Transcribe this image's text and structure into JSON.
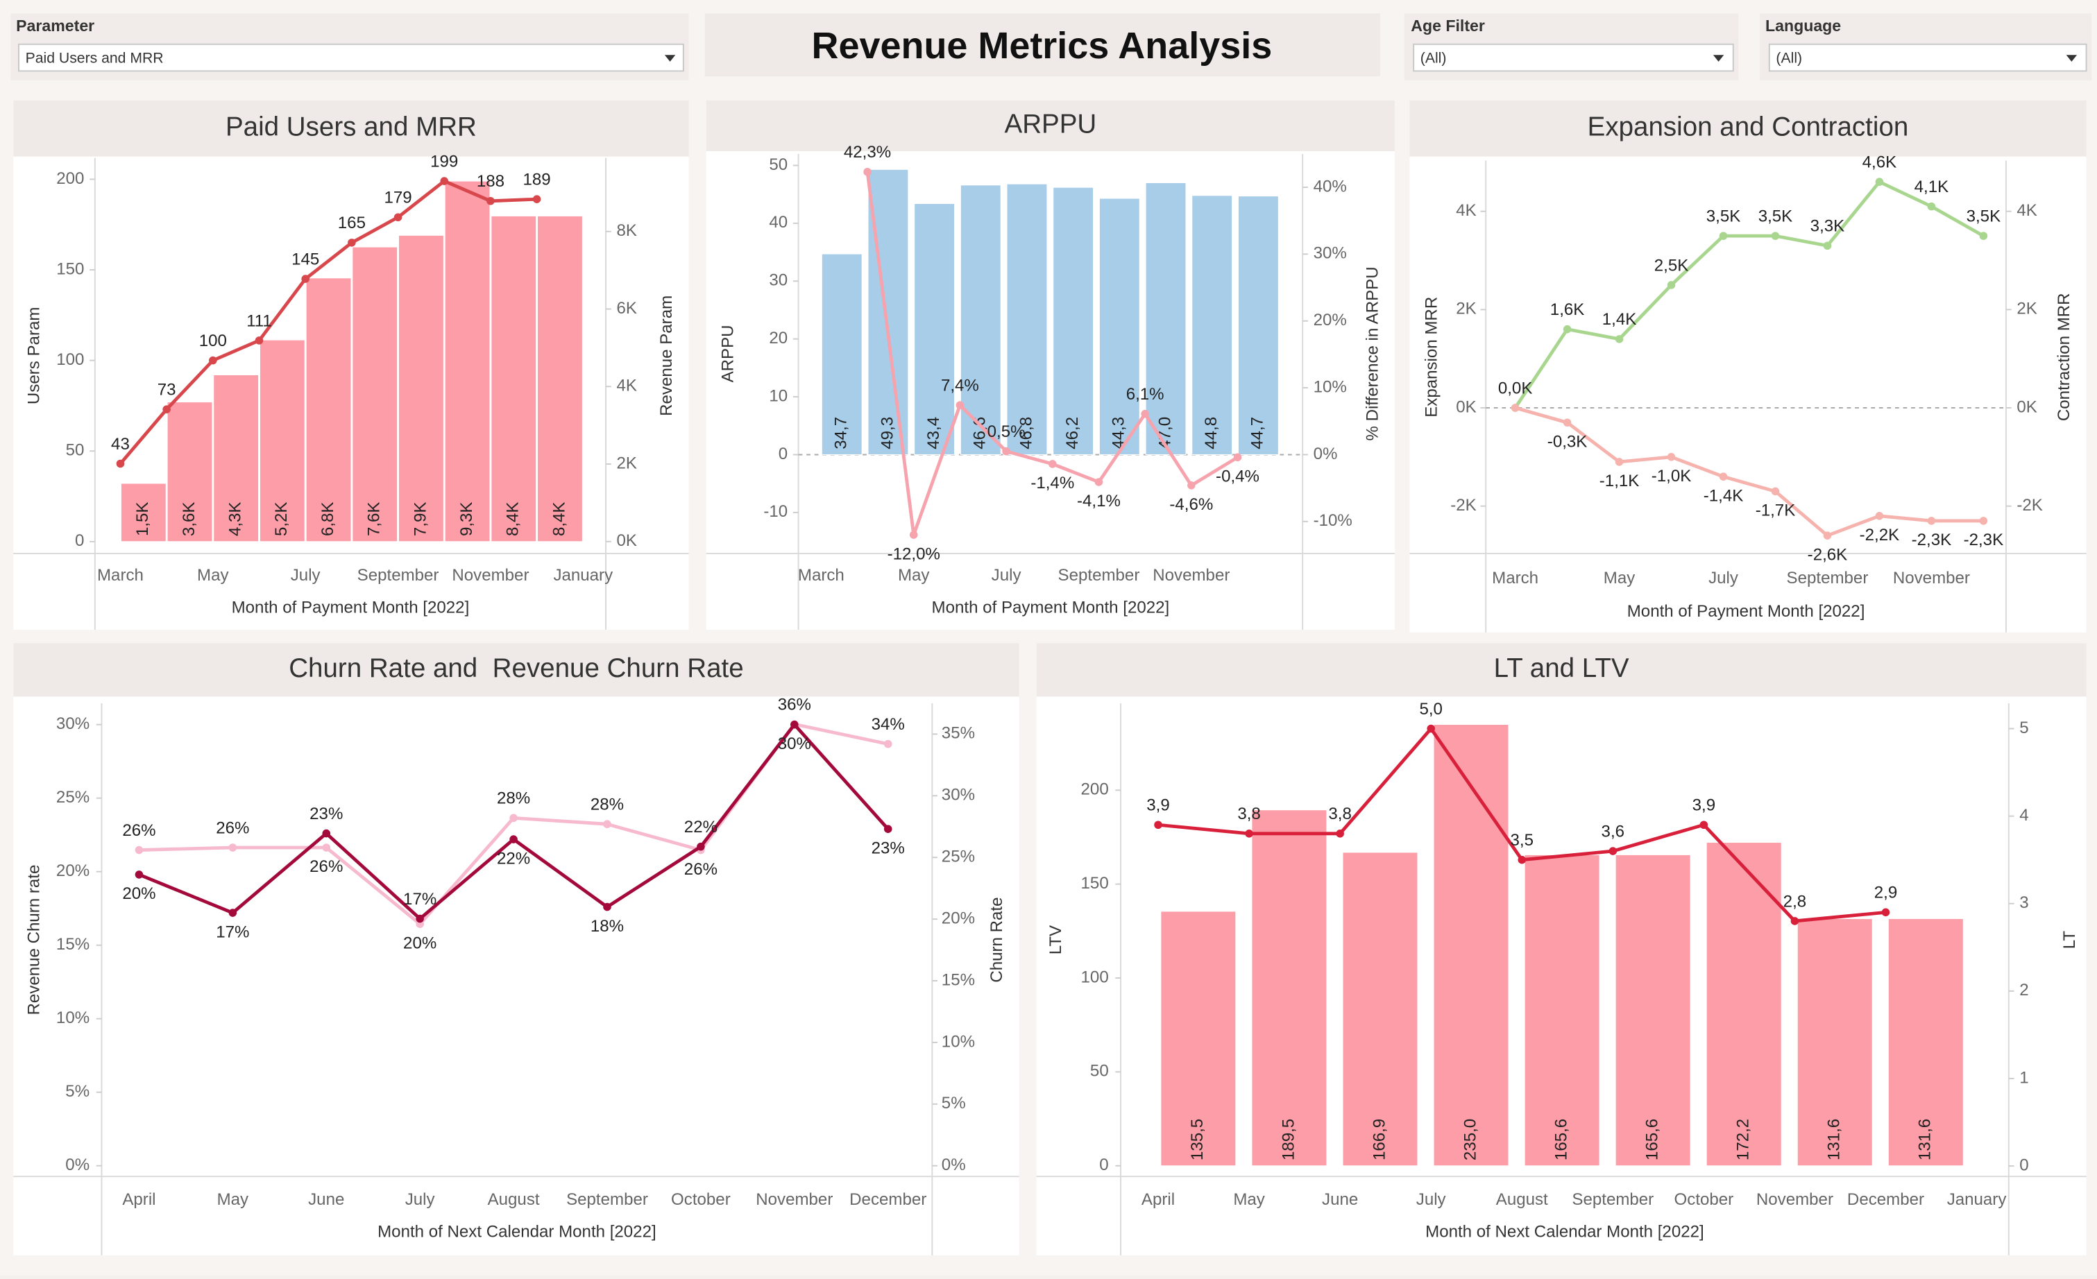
{
  "header": {
    "title": "Revenue Metrics Analysis"
  },
  "filters": [
    {
      "label": "Parameter",
      "value": "Paid Users and MRR"
    },
    {
      "label": "Age Filter",
      "value": "(All)"
    },
    {
      "label": "Language",
      "value": "(All)"
    }
  ],
  "chart_data": [
    {
      "type": "combo",
      "title": "Paid Users and MRR",
      "categories": [
        "March",
        null,
        "May",
        null,
        "July",
        null,
        "September",
        null,
        "November",
        null,
        "January"
      ],
      "xlabel": "Month of Payment Month [2022]",
      "ylabel": "Users Param",
      "y2label": "Revenue Param",
      "series": [
        {
          "mark": "bar",
          "axis": "y2",
          "color": "#fc9da7",
          "values": [
            1500,
            3600,
            4300,
            5200,
            6800,
            7600,
            7900,
            9300,
            8400,
            8400,
            null
          ],
          "value_labels": [
            "1,5K",
            "3,6K",
            "4,3K",
            "5,2K",
            "6,8K",
            "7,6K",
            "7,9K",
            "9,3K",
            "8,4K",
            "8,4K",
            null
          ]
        },
        {
          "mark": "line",
          "axis": "y",
          "color": "#d8474b",
          "values": [
            43,
            73,
            100,
            111,
            145,
            165,
            179,
            199,
            188,
            189,
            null
          ]
        }
      ],
      "ylim": [
        -6.6,
        211.8
      ],
      "yticks": [
        0,
        50,
        100,
        150,
        200
      ],
      "y2lim": [
        -310,
        9900
      ],
      "y2ticks": [
        {
          "value": 0,
          "label": "0K"
        },
        {
          "value": 2000,
          "label": "2K"
        },
        {
          "value": 4000,
          "label": "4K"
        },
        {
          "value": 6000,
          "label": "6K"
        },
        {
          "value": 8000,
          "label": "8K"
        }
      ]
    },
    {
      "type": "combo",
      "title": "ARPPU",
      "categories": [
        "March",
        null,
        "May",
        null,
        "July",
        null,
        "September",
        null,
        "November",
        null
      ],
      "xlabel": "Month of Payment Month [2022]",
      "ylabel": "ARPPU",
      "y2label": "% Difference in ARPPU",
      "zero_line": true,
      "series": [
        {
          "mark": "bar",
          "axis": "y",
          "color": "#a7cde9",
          "values": [
            34.7,
            49.3,
            43.4,
            46.6,
            46.8,
            46.2,
            44.3,
            47.0,
            44.8,
            44.7
          ],
          "value_labels": [
            "34,7",
            "49,3",
            "43,4",
            "46,6",
            "46,8",
            "46,2",
            "44,3",
            "47,0",
            "44,8",
            "44,7"
          ]
        },
        {
          "mark": "line",
          "axis": "y2",
          "color": "#f6a3ad",
          "values": [
            null,
            42.3,
            -12.0,
            7.4,
            0.5,
            -1.4,
            -4.1,
            6.1,
            -4.6,
            -0.4
          ],
          "value_labels": [
            null,
            "42,3%",
            "-12,0%",
            "7,4%",
            "0,5%",
            "-1,4%",
            "-4,1%",
            "6,1%",
            "-4,6%",
            "-0,4%"
          ]
        }
      ],
      "ylim": [
        -17.1,
        52.0
      ],
      "yticks": [
        -10,
        0,
        10,
        20,
        30,
        40,
        50
      ],
      "y2lim": [
        -14.8,
        45
      ],
      "y2ticks": [
        {
          "value": -10,
          "label": "-10%"
        },
        {
          "value": 0,
          "label": "0%"
        },
        {
          "value": 10,
          "label": "10%"
        },
        {
          "value": 20,
          "label": "20%"
        },
        {
          "value": 30,
          "label": "30%"
        },
        {
          "value": 40,
          "label": "40%"
        }
      ]
    },
    {
      "type": "line",
      "title": "Expansion and Contraction",
      "categories": [
        "March",
        null,
        "May",
        null,
        "July",
        null,
        "September",
        null,
        "November",
        null
      ],
      "xlabel": "Month of Payment Month [2022]",
      "ylabel": "Expansion MRR",
      "y2label": "Contraction MRR",
      "zero_line": true,
      "series": [
        {
          "mark": "line",
          "axis": "y",
          "color": "#a9d68f",
          "values": [
            0,
            1600,
            1400,
            2500,
            3500,
            3500,
            3300,
            4600,
            4100,
            3500
          ],
          "value_labels": [
            "0,0K",
            "1,6K",
            "1,4K",
            "2,5K",
            "3,5K",
            "3,5K",
            "3,3K",
            "4,6K",
            "4,1K",
            "3,5K"
          ]
        },
        {
          "mark": "line",
          "axis": "y2",
          "color": "#f6b3ad",
          "values": [
            0,
            -300,
            -1100,
            -1000,
            -1400,
            -1700,
            -2600,
            -2200,
            -2300,
            -2300
          ],
          "value_labels": [
            null,
            "-0,3K",
            "-1,1K",
            "-1,0K",
            "-1,4K",
            "-1,7K",
            "-2,6K",
            "-2,2K",
            "-2,3K",
            "-2,3K"
          ]
        }
      ],
      "ylim": [
        -2966,
        5034
      ],
      "yticks": [
        {
          "value": -2000,
          "label": "-2K"
        },
        {
          "value": 0,
          "label": "0K"
        },
        {
          "value": 2000,
          "label": "2K"
        },
        {
          "value": 4000,
          "label": "4K"
        }
      ],
      "y2lim": [
        -2966,
        5034
      ],
      "y2ticks": [
        {
          "value": -2000,
          "label": "-2K"
        },
        {
          "value": 0,
          "label": "0K"
        },
        {
          "value": 2000,
          "label": "2K"
        },
        {
          "value": 4000,
          "label": "4K"
        }
      ]
    },
    {
      "type": "line",
      "title": "Churn Rate and  Revenue Churn Rate",
      "categories": [
        "April",
        "May",
        "June",
        "July",
        "August",
        "September",
        "October",
        "November",
        "December"
      ],
      "xlabel": "Month of Next Calendar Month [2022]",
      "ylabel": "Revenue Churn rate",
      "y2label": "Churn Rate",
      "series": [
        {
          "mark": "line",
          "axis": "y2",
          "color": "#f7b9cd",
          "values": [
            25.6,
            25.8,
            25.8,
            19.6,
            28.2,
            27.7,
            25.6,
            35.8,
            34.2
          ],
          "value_labels": [
            "26%",
            "26%",
            "26%",
            "20%",
            "28%",
            "28%",
            "26%",
            "36%",
            "34%"
          ]
        },
        {
          "mark": "line",
          "axis": "y",
          "color": "#a3093a",
          "values": [
            19.8,
            17.2,
            22.6,
            16.8,
            22.2,
            17.6,
            21.7,
            30.0,
            22.9
          ],
          "value_labels": [
            "20%",
            "17%",
            "23%",
            "17%",
            "22%",
            "18%",
            "22%",
            "30%",
            "23%"
          ]
        }
      ],
      "ylim": [
        -0.73,
        31.45
      ],
      "yticks": [
        {
          "value": 0,
          "label": "0%"
        },
        {
          "value": 5,
          "label": "5%"
        },
        {
          "value": 10,
          "label": "10%"
        },
        {
          "value": 15,
          "label": "15%"
        },
        {
          "value": 20,
          "label": "20%"
        },
        {
          "value": 25,
          "label": "25%"
        },
        {
          "value": 30,
          "label": "30%"
        }
      ],
      "y2lim": [
        -0.87,
        37.5
      ],
      "y2ticks": [
        {
          "value": 0,
          "label": "0%"
        },
        {
          "value": 5,
          "label": "5%"
        },
        {
          "value": 10,
          "label": "10%"
        },
        {
          "value": 15,
          "label": "15%"
        },
        {
          "value": 20,
          "label": "20%"
        },
        {
          "value": 25,
          "label": "25%"
        },
        {
          "value": 30,
          "label": "30%"
        },
        {
          "value": 35,
          "label": "35%"
        }
      ]
    },
    {
      "type": "combo",
      "title": "LT and LTV",
      "categories": [
        "April",
        "May",
        "June",
        "July",
        "August",
        "September",
        "October",
        "November",
        "December",
        "January"
      ],
      "xlabel": "Month of Next Calendar Month [2022]",
      "ylabel": "LTV",
      "y2label": "LT",
      "series": [
        {
          "mark": "bar",
          "axis": "y",
          "color": "#fc9da7",
          "values": [
            135.5,
            189.5,
            166.9,
            235.0,
            165.6,
            165.6,
            172.2,
            131.6,
            131.6,
            null
          ],
          "value_labels": [
            "135,5",
            "189,5",
            "166,9",
            "235,0",
            "165,6",
            "165,6",
            "172,2",
            "131,6",
            "131,6",
            null
          ]
        },
        {
          "mark": "line",
          "axis": "y2",
          "color": "#d8203b",
          "values": [
            3.9,
            3.8,
            3.8,
            5.0,
            3.5,
            3.6,
            3.9,
            2.8,
            2.9,
            null
          ],
          "value_labels": [
            "3,9",
            "3,8",
            "3,8",
            "5,0",
            "3,5",
            "3,6",
            "3,9",
            "2,8",
            "2,9",
            null
          ]
        }
      ],
      "ylim": [
        -5.7,
        246.3
      ],
      "yticks": [
        0,
        50,
        100,
        150,
        200
      ],
      "y2lim": [
        -0.12,
        5.29
      ],
      "y2ticks": [
        0,
        1,
        2,
        3,
        4,
        5
      ]
    }
  ]
}
